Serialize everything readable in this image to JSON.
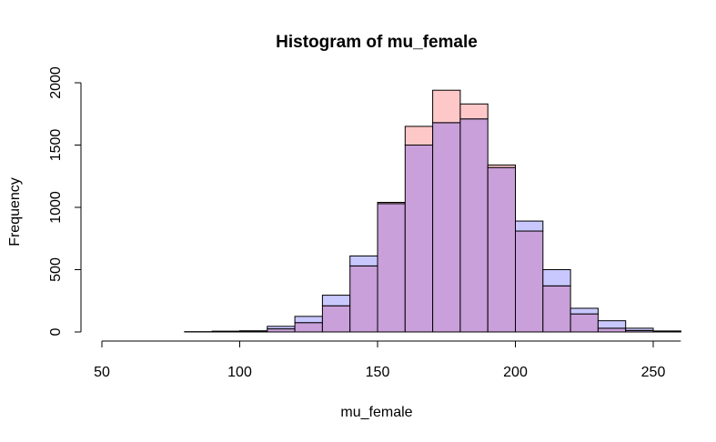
{
  "chart_data": {
    "type": "bar",
    "title": "Histogram of mu_female",
    "xlabel": "mu_female",
    "ylabel": "Frequency",
    "xlim": [
      50,
      260
    ],
    "ylim": [
      0,
      2000
    ],
    "xticks": [
      50,
      100,
      150,
      200,
      250
    ],
    "yticks": [
      0,
      500,
      1000,
      1500,
      2000
    ],
    "bin_width": 10,
    "colors": {
      "series_a": "#ffc8c8",
      "series_b": "#c8c8ff",
      "overlap": "#c9a0da",
      "border": "#000000"
    },
    "series": [
      {
        "color": "#ffc8c8",
        "bins": [
          {
            "x0": 80,
            "x1": 90,
            "value": 2
          },
          {
            "x0": 90,
            "x1": 100,
            "value": 5
          },
          {
            "x0": 100,
            "x1": 110,
            "value": 8
          },
          {
            "x0": 110,
            "x1": 120,
            "value": 25
          },
          {
            "x0": 120,
            "x1": 130,
            "value": 75
          },
          {
            "x0": 130,
            "x1": 140,
            "value": 210
          },
          {
            "x0": 140,
            "x1": 150,
            "value": 530
          },
          {
            "x0": 150,
            "x1": 160,
            "value": 1040
          },
          {
            "x0": 160,
            "x1": 170,
            "value": 1650
          },
          {
            "x0": 170,
            "x1": 180,
            "value": 1940
          },
          {
            "x0": 180,
            "x1": 190,
            "value": 1830
          },
          {
            "x0": 190,
            "x1": 200,
            "value": 1340
          },
          {
            "x0": 200,
            "x1": 210,
            "value": 810
          },
          {
            "x0": 210,
            "x1": 220,
            "value": 370
          },
          {
            "x0": 220,
            "x1": 230,
            "value": 145
          },
          {
            "x0": 230,
            "x1": 240,
            "value": 30
          },
          {
            "x0": 240,
            "x1": 250,
            "value": 12
          },
          {
            "x0": 250,
            "x1": 260,
            "value": 3
          }
        ]
      },
      {
        "color": "#c8c8ff",
        "bins": [
          {
            "x0": 80,
            "x1": 90,
            "value": 1
          },
          {
            "x0": 90,
            "x1": 100,
            "value": 6
          },
          {
            "x0": 100,
            "x1": 110,
            "value": 9
          },
          {
            "x0": 110,
            "x1": 120,
            "value": 45
          },
          {
            "x0": 120,
            "x1": 130,
            "value": 125
          },
          {
            "x0": 130,
            "x1": 140,
            "value": 295
          },
          {
            "x0": 140,
            "x1": 150,
            "value": 610
          },
          {
            "x0": 150,
            "x1": 160,
            "value": 1030
          },
          {
            "x0": 160,
            "x1": 170,
            "value": 1500
          },
          {
            "x0": 170,
            "x1": 180,
            "value": 1680
          },
          {
            "x0": 180,
            "x1": 190,
            "value": 1710
          },
          {
            "x0": 190,
            "x1": 200,
            "value": 1320
          },
          {
            "x0": 200,
            "x1": 210,
            "value": 890
          },
          {
            "x0": 210,
            "x1": 220,
            "value": 500
          },
          {
            "x0": 220,
            "x1": 230,
            "value": 190
          },
          {
            "x0": 230,
            "x1": 240,
            "value": 90
          },
          {
            "x0": 240,
            "x1": 250,
            "value": 30
          },
          {
            "x0": 250,
            "x1": 260,
            "value": 8
          }
        ]
      }
    ]
  }
}
